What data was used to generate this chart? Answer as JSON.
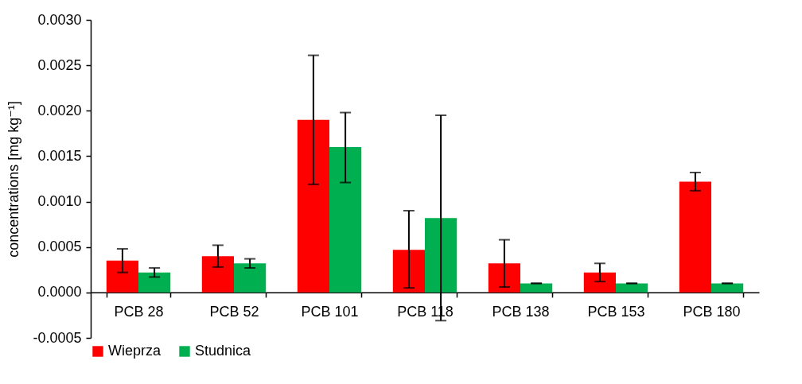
{
  "chart_data": {
    "type": "bar",
    "ylabel": "concentrations [mg kg⁻¹]",
    "categories": [
      "PCB 28",
      "PCB 52",
      "PCB 101",
      "PCB 118",
      "PCB 138",
      "PCB 153",
      "PCB 180"
    ],
    "series": [
      {
        "name": "Wieprza",
        "color": "#ff0000",
        "values": [
          0.00035,
          0.0004,
          0.0019,
          0.00047,
          0.00032,
          0.00022,
          0.00122
        ],
        "errors": [
          0.00013,
          0.00012,
          [
            0.00119,
            0.00261
          ],
          [
            5e-05,
            0.0009
          ],
          0.00026,
          0.0001,
          0.0001
        ]
      },
      {
        "name": "Studnica",
        "color": "#00b050",
        "values": [
          0.00022,
          0.00032,
          0.0016,
          0.00082,
          0.0001,
          0.0001,
          0.0001
        ],
        "errors": [
          5e-05,
          5e-05,
          [
            0.00121,
            0.00198
          ],
          0.00113,
          0,
          0,
          0
        ]
      }
    ],
    "ylim": [
      -0.0005,
      0.003
    ],
    "yticks": [
      {
        "value": -0.0005,
        "label": "-0.0005"
      },
      {
        "value": 0,
        "label": "0.0000"
      },
      {
        "value": 0.0005,
        "label": "0.0005"
      },
      {
        "value": 0.001,
        "label": "0.0010"
      },
      {
        "value": 0.0015,
        "label": "0.0015"
      },
      {
        "value": 0.002,
        "label": "0.0020"
      },
      {
        "value": 0.0025,
        "label": "0.0025"
      },
      {
        "value": 0.003,
        "label": "0.0030"
      }
    ],
    "grid": false,
    "legend": "bottom"
  }
}
